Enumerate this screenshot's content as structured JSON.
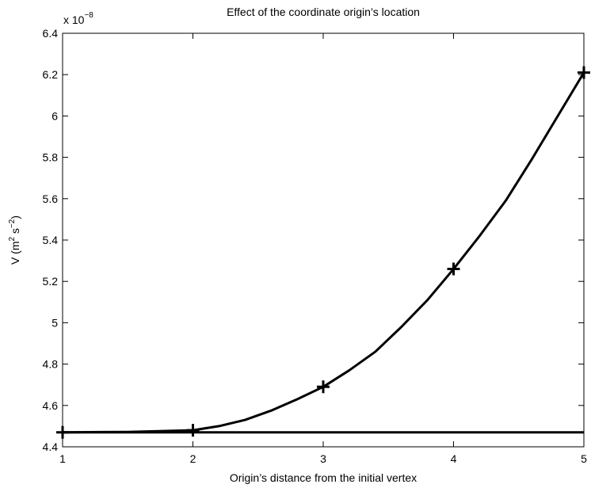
{
  "chart_data": {
    "type": "line",
    "title": "Effect of the coordinate origin’s location",
    "xlabel": "Origin’s distance from the initial vertex",
    "ylabel": [
      "V (m",
      "2",
      " s",
      "−2",
      ")"
    ],
    "axis_multiplier": [
      "x 10",
      "−8"
    ],
    "xlim": [
      1,
      5
    ],
    "xticks": [
      1,
      2,
      3,
      4,
      5
    ],
    "ylim": [
      4.4,
      6.4
    ],
    "yticks": [
      4.4,
      4.6,
      4.8,
      5,
      5.2,
      5.4,
      5.6,
      5.8,
      6,
      6.2,
      6.4
    ],
    "series": [
      {
        "color": "#000000",
        "style": "line",
        "x": [
          1,
          1.5,
          2,
          2.2,
          2.4,
          2.6,
          2.8,
          3,
          3.2,
          3.4,
          3.6,
          3.8,
          4,
          4.2,
          4.4,
          4.6,
          4.8,
          5
        ],
        "values": [
          4.47,
          4.472,
          4.48,
          4.5,
          4.53,
          4.575,
          4.63,
          4.69,
          4.77,
          4.86,
          4.98,
          5.11,
          5.26,
          5.42,
          5.59,
          5.79,
          6.0,
          6.21
        ]
      },
      {
        "color": "#000000",
        "style": "plus",
        "x": [
          1,
          2,
          3,
          4,
          5
        ],
        "values": [
          4.47,
          4.48,
          4.69,
          5.26,
          6.21
        ]
      },
      {
        "color": "#000000",
        "style": "line",
        "x": [
          1,
          5
        ],
        "values": [
          4.47,
          4.47
        ]
      }
    ]
  }
}
